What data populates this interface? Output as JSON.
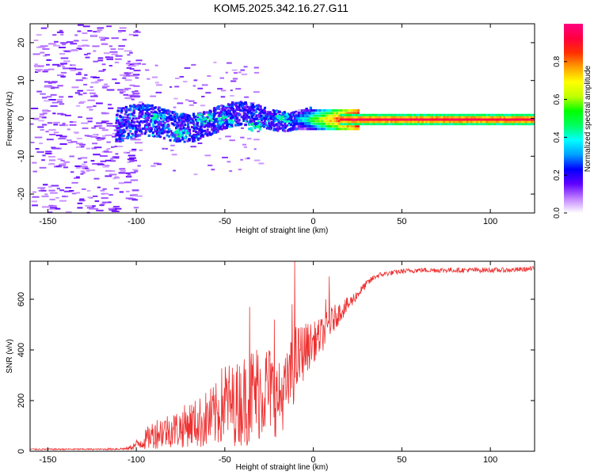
{
  "title": "KOM5.2025.342.16.27.G11",
  "chart_data": [
    {
      "type": "heatmap",
      "id": "spectrogram",
      "xlabel": "Height of straight line (km)",
      "ylabel": "Frequency (Hz)",
      "xlim": [
        -160,
        125
      ],
      "ylim": [
        -25,
        25
      ],
      "xticks": [
        -150,
        -100,
        -50,
        0,
        50,
        100
      ],
      "yticks": [
        -20,
        -10,
        0,
        10,
        20
      ],
      "colorbar": {
        "label": "Normalized spectral amplitude",
        "range": [
          0,
          1
        ],
        "ticks": [
          "0.0",
          "0.2",
          "0.4",
          "0.6",
          "0.8"
        ],
        "tick_values": [
          0,
          0.2,
          0.4,
          0.6,
          0.8
        ],
        "colors": [
          "#ffffff",
          "#c080ff",
          "#6000ff",
          "#0000ff",
          "#00a0ff",
          "#00ffff",
          "#00ff60",
          "#00ff00",
          "#c0ff00",
          "#ffff00",
          "#ffa000",
          "#ff3000",
          "#ff0040",
          "#ff0080"
        ]
      },
      "description_points": [
        {
          "x": 0,
          "y": 0,
          "amp": 0.45
        },
        {
          "x": 25,
          "y": 0,
          "amp": 0.95
        },
        {
          "x": 75,
          "y": 0,
          "amp": 0.95
        },
        {
          "x": 122,
          "y": 0,
          "amp": 0.95
        },
        {
          "x": -20,
          "y": -1,
          "amp": 0.3
        },
        {
          "x": -50,
          "y": 2,
          "amp": 0.25
        },
        {
          "x": -80,
          "y": 0,
          "amp": 0.3
        }
      ]
    },
    {
      "type": "line",
      "id": "snr",
      "xlabel": "Height of straight line (km)",
      "ylabel": "SNR (v/v)",
      "xlim": [
        -160,
        125
      ],
      "ylim": [
        0,
        750
      ],
      "xticks": [
        -150,
        -100,
        -50,
        0,
        50,
        100
      ],
      "yticks": [
        0,
        200,
        400,
        600
      ],
      "series": [
        {
          "name": "SNR",
          "color": "#ee3030",
          "x": [
            -160,
            -140,
            -120,
            -105,
            -100,
            -95,
            -90,
            -85,
            -80,
            -75,
            -70,
            -65,
            -60,
            -55,
            -50,
            -45,
            -40,
            -35,
            -30,
            -25,
            -20,
            -15,
            -10,
            -5,
            0,
            5,
            10,
            15,
            20,
            25,
            30,
            35,
            40,
            50,
            60,
            70,
            80,
            90,
            100,
            110,
            125
          ],
          "values": [
            8,
            8,
            8,
            10,
            25,
            45,
            70,
            80,
            85,
            90,
            110,
            110,
            125,
            140,
            200,
            180,
            200,
            220,
            240,
            250,
            200,
            250,
            350,
            400,
            430,
            460,
            510,
            550,
            580,
            620,
            660,
            690,
            700,
            710,
            715,
            715,
            715,
            715,
            715,
            715,
            720
          ],
          "noise": [
            3,
            3,
            3,
            5,
            20,
            40,
            60,
            70,
            70,
            80,
            90,
            100,
            120,
            130,
            170,
            160,
            180,
            200,
            200,
            180,
            150,
            140,
            150,
            110,
            80,
            70,
            60,
            40,
            30,
            20,
            15,
            12,
            10,
            10,
            10,
            10,
            10,
            10,
            10,
            10,
            10
          ],
          "peaks": [
            {
              "x": -10.5,
              "y": 750
            },
            {
              "x": -12,
              "y": 580
            },
            {
              "x": -36,
              "y": 570
            },
            {
              "x": -22,
              "y": 520
            },
            {
              "x": 9,
              "y": 690
            },
            {
              "x": 7,
              "y": 600
            }
          ]
        }
      ]
    }
  ]
}
